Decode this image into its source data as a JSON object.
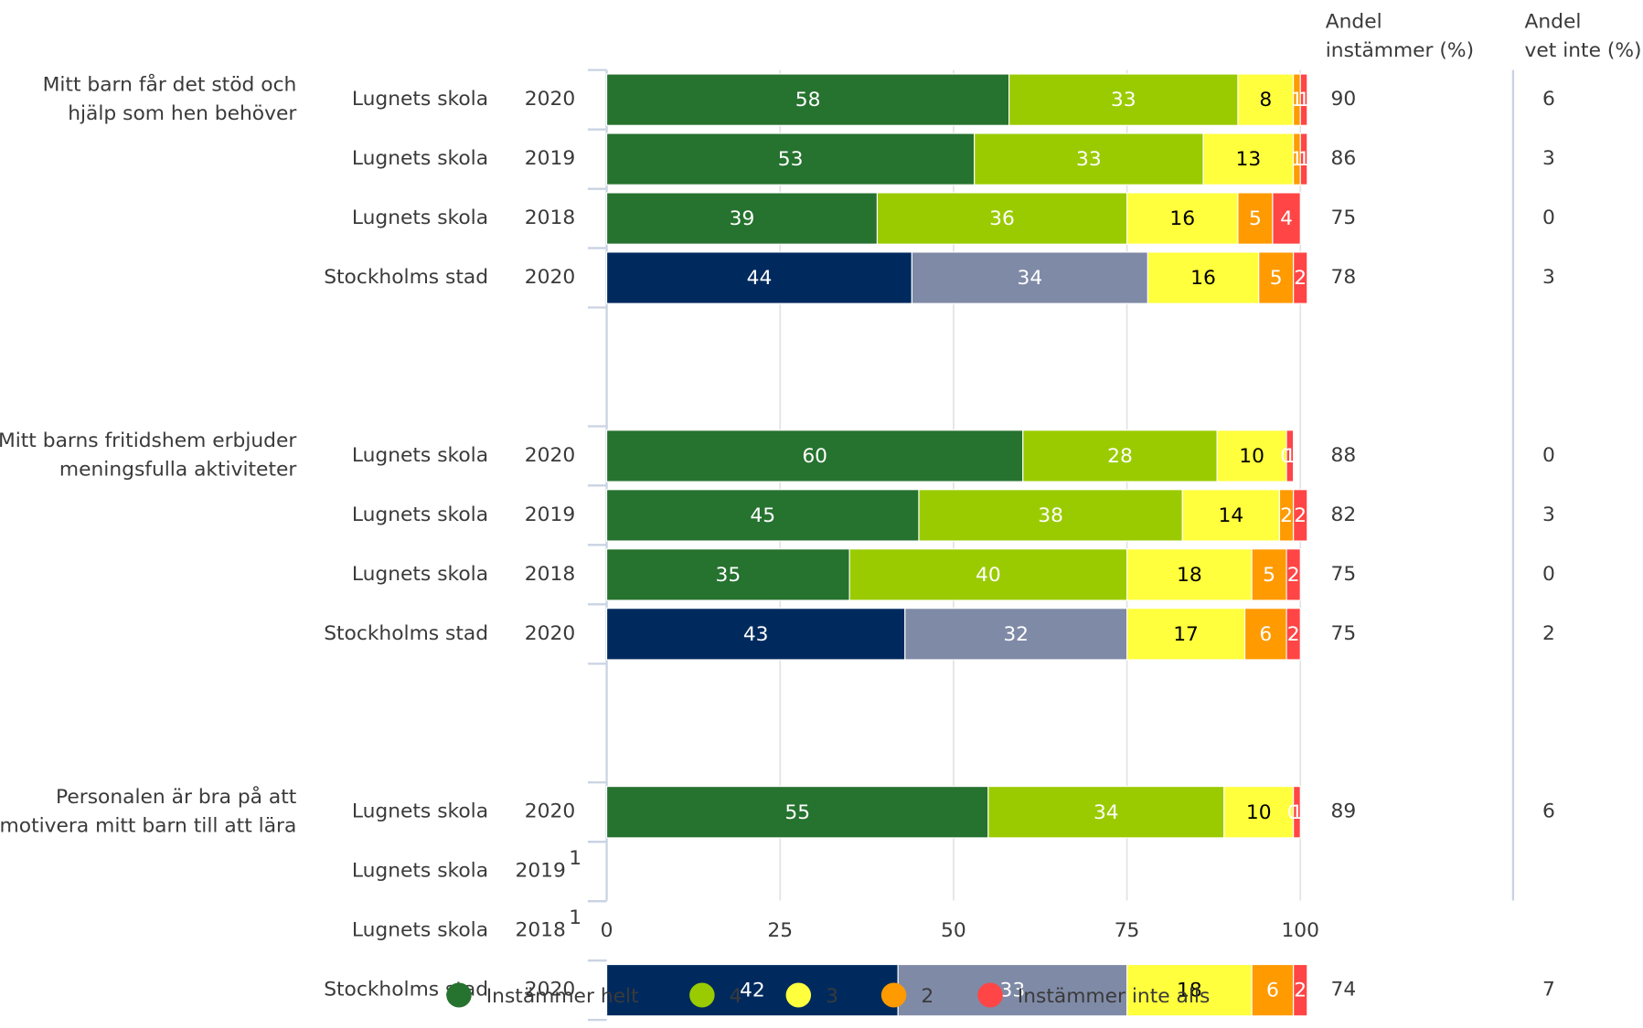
{
  "chart_data": {
    "type": "stacked-bar-horizontal",
    "xlim": [
      0,
      100
    ],
    "xticks": [
      0,
      25,
      50,
      75,
      100
    ],
    "grid": true,
    "legend": [
      "Instämmer helt",
      "4",
      "3",
      "2",
      "Instämmer inte alls"
    ],
    "colors": [
      "#26722f",
      "#9acb00",
      "#ffff3d",
      "#ff9a00",
      "#ff4545"
    ],
    "comparison_colors": [
      "#002a5e",
      "#7f8aa6",
      "#ffff3d",
      "#ff9a00",
      "#ff4545"
    ],
    "comparison_name": "Stockholms stad",
    "column_headers": [
      [
        "Andel",
        "instämmer (%)"
      ],
      [
        "Andel",
        "vet inte (%)"
      ]
    ],
    "groups": [
      {
        "label": [
          "Mitt barn får det stöd och",
          "hjälp som hen behöver"
        ],
        "rows": [
          {
            "name": "Lugnets skola",
            "year": "2020",
            "values": [
              58,
              33,
              8,
              1,
              1
            ],
            "agree": 90,
            "dont_know": 6
          },
          {
            "name": "Lugnets skola",
            "year": "2019",
            "values": [
              53,
              33,
              13,
              1,
              1
            ],
            "agree": 86,
            "dont_know": 3
          },
          {
            "name": "Lugnets skola",
            "year": "2018",
            "values": [
              39,
              36,
              16,
              5,
              4
            ],
            "agree": 75,
            "dont_know": 0
          },
          {
            "name": "Stockholms stad",
            "year": "2020",
            "values": [
              44,
              34,
              16,
              5,
              2
            ],
            "agree": 78,
            "dont_know": 3
          }
        ]
      },
      {
        "label": [
          "Mitt barns fritidshem erbjuder",
          "meningsfulla aktiviteter"
        ],
        "rows": [
          {
            "name": "Lugnets skola",
            "year": "2020",
            "values": [
              60,
              28,
              10,
              0,
              1
            ],
            "agree": 88,
            "dont_know": 0
          },
          {
            "name": "Lugnets skola",
            "year": "2019",
            "values": [
              45,
              38,
              14,
              2,
              2
            ],
            "agree": 82,
            "dont_know": 3
          },
          {
            "name": "Lugnets skola",
            "year": "2018",
            "values": [
              35,
              40,
              18,
              5,
              2
            ],
            "agree": 75,
            "dont_know": 0
          },
          {
            "name": "Stockholms stad",
            "year": "2020",
            "values": [
              43,
              32,
              17,
              6,
              2
            ],
            "agree": 75,
            "dont_know": 2
          }
        ]
      },
      {
        "label": [
          "Personalen är bra på att",
          "motivera mitt barn till att lära"
        ],
        "rows": [
          {
            "name": "Lugnets skola",
            "year": "2020",
            "values": [
              55,
              34,
              10,
              0,
              1
            ],
            "agree": 89,
            "dont_know": 6
          },
          {
            "name": "Lugnets skola",
            "year": "2019",
            "note": "1",
            "values": [
              null,
              null,
              null,
              null,
              null
            ],
            "agree": null,
            "dont_know": null
          },
          {
            "name": "Lugnets skola",
            "year": "2018",
            "note": "1",
            "values": [
              null,
              null,
              null,
              null,
              null
            ],
            "agree": null,
            "dont_know": null
          },
          {
            "name": "Stockholms stad",
            "year": "2020",
            "values": [
              42,
              33,
              18,
              6,
              2
            ],
            "agree": 74,
            "dont_know": 7
          }
        ]
      }
    ]
  }
}
